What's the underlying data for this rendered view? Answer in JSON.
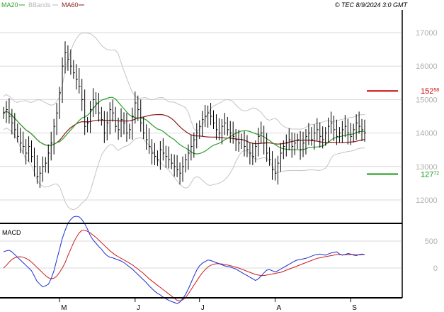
{
  "chart_data": [
    {
      "type": "line",
      "title": "",
      "legend": [
        {
          "name": "MA20",
          "color": "#2ca02c"
        },
        {
          "name": "BBands",
          "color": "#b8b8b8"
        },
        {
          "name": "MA60",
          "color": "#8b1a1a"
        }
      ],
      "copyright": "© TEC 8/9/2024 3:0 GMT",
      "y_ticks": [
        "12000",
        "13000",
        "14000",
        "15000",
        "16000",
        "17000"
      ],
      "ylim": [
        11500,
        17500
      ],
      "x_ticks": [
        "M",
        "J",
        "J",
        "A",
        "S"
      ],
      "x_tick_index": [
        20,
        47,
        70,
        97,
        124
      ],
      "n_bars": 130,
      "grid": true,
      "levels": [
        {
          "name": "resistance",
          "value": 15258,
          "label_main": "152",
          "label_sup": "58",
          "color": "#cc0000"
        },
        {
          "name": "support",
          "value": 12772,
          "label_main": "127",
          "label_sup": "72",
          "color": "#119911"
        }
      ],
      "close": [
        14600,
        14700,
        14500,
        14300,
        14100,
        13900,
        13700,
        13600,
        13400,
        13600,
        13300,
        13000,
        12700,
        12800,
        13000,
        13100,
        13400,
        13700,
        14200,
        14600,
        15200,
        16000,
        16400,
        16200,
        16000,
        15800,
        15600,
        15400,
        15000,
        14200,
        14300,
        14700,
        15000,
        14900,
        14600,
        14400,
        14000,
        14300,
        14700,
        14600,
        14200,
        14100,
        14400,
        14300,
        14000,
        14100,
        14500,
        14900,
        14700,
        14300,
        14000,
        13800,
        13600,
        13400,
        13300,
        13200,
        13500,
        13400,
        13300,
        13200,
        13100,
        13000,
        12900,
        12800,
        13000,
        13200,
        13400,
        13600,
        13800,
        14000,
        14200,
        14400,
        14500,
        14600,
        14500,
        14300,
        14100,
        14000,
        14200,
        14300,
        14100,
        14000,
        13900,
        13800,
        13700,
        13800,
        13600,
        13500,
        13400,
        13300,
        13600,
        13900,
        14000,
        13700,
        13400,
        13200,
        12900,
        12800,
        13100,
        13400,
        13600,
        13700,
        13800,
        13600,
        13700,
        13800,
        13500,
        13700,
        13900,
        14000,
        13800,
        14000,
        14100,
        13900,
        13800,
        14000,
        14200,
        14300,
        14100,
        13900,
        14000,
        14100,
        14200,
        14000,
        13900,
        14100,
        14300,
        14200,
        14100,
        14000
      ]
    },
    {
      "type": "line",
      "title": "MACD",
      "y_ticks": [
        "0",
        "500"
      ],
      "ylim": [
        -700,
        1200
      ],
      "series": [
        {
          "name": "MACD",
          "color": "#1c2fd0"
        },
        {
          "name": "Signal",
          "color": "#cc1a1a"
        }
      ],
      "macd": [
        300,
        320,
        330,
        300,
        250,
        200,
        150,
        100,
        50,
        0,
        -50,
        -150,
        -250,
        -300,
        -350,
        -330,
        -300,
        -200,
        -50,
        150,
        350,
        550,
        700,
        830,
        900,
        950,
        960,
        950,
        900,
        820,
        720,
        600,
        520,
        460,
        400,
        350,
        280,
        230,
        200,
        190,
        170,
        150,
        130,
        100,
        60,
        20,
        -20,
        -70,
        -120,
        -170,
        -220,
        -270,
        -330,
        -380,
        -430,
        -470,
        -500,
        -540,
        -570,
        -600,
        -620,
        -640,
        -660,
        -630,
        -570,
        -490,
        -390,
        -270,
        -150,
        -40,
        40,
        90,
        120,
        150,
        140,
        120,
        100,
        80,
        60,
        40,
        30,
        20,
        0,
        -20,
        -50,
        -80,
        -110,
        -140,
        -170,
        -200,
        -230,
        -200,
        -150,
        -90,
        -40,
        -30,
        -50,
        -70,
        -50,
        -20,
        10,
        40,
        70,
        100,
        130,
        150,
        160,
        170,
        180,
        200,
        220,
        240,
        250,
        260,
        250,
        240,
        260,
        280,
        290,
        300,
        260,
        240,
        250,
        270,
        260,
        240,
        230,
        250,
        260,
        250
      ],
      "signal": [
        0,
        50,
        110,
        160,
        190,
        205,
        210,
        200,
        180,
        150,
        110,
        60,
        10,
        -40,
        -90,
        -140,
        -180,
        -200,
        -190,
        -150,
        -80,
        0,
        100,
        230,
        350,
        470,
        570,
        650,
        700,
        700,
        680,
        650,
        610,
        570,
        520,
        470,
        420,
        370,
        320,
        280,
        240,
        210,
        180,
        150,
        120,
        90,
        60,
        20,
        -20,
        -60,
        -100,
        -150,
        -200,
        -240,
        -280,
        -320,
        -360,
        -400,
        -440,
        -480,
        -520,
        -560,
        -600,
        -610,
        -590,
        -550,
        -480,
        -400,
        -320,
        -240,
        -160,
        -90,
        -30,
        20,
        50,
        70,
        80,
        80,
        75,
        65,
        55,
        45,
        30,
        15,
        0,
        -20,
        -40,
        -60,
        -80,
        -100,
        -120,
        -130,
        -140,
        -140,
        -130,
        -120,
        -110,
        -100,
        -90,
        -80,
        -60,
        -40,
        -20,
        0,
        20,
        40,
        60,
        80,
        100,
        120,
        140,
        160,
        180,
        190,
        200,
        210,
        220,
        230,
        240,
        250,
        250,
        245,
        245,
        250,
        250,
        250,
        245,
        245,
        250,
        250
      ]
    }
  ]
}
